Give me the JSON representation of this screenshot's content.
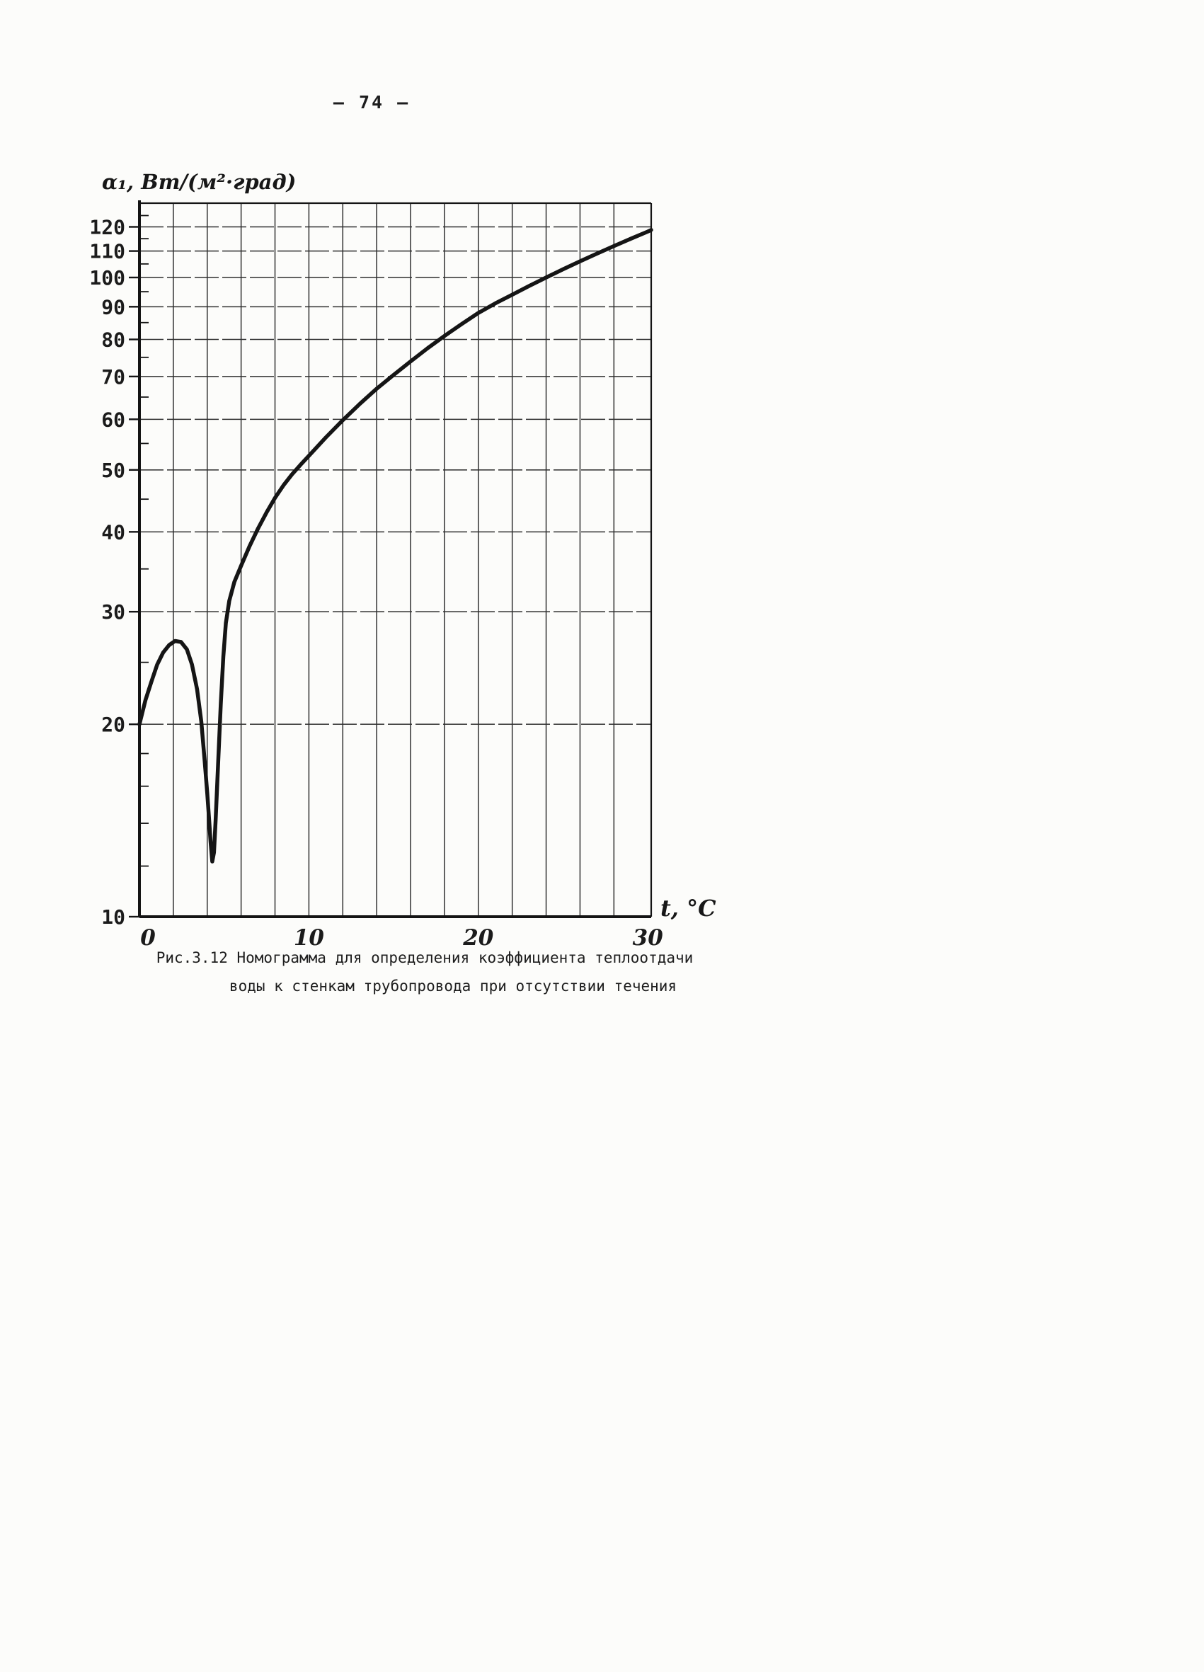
{
  "page": {
    "number": "– 74 –"
  },
  "caption": {
    "line1": "Рис.3.12  Номограмма для определения коэффициента теплоотдачи",
    "line2": "воды к стенкам трубопровода при отсутствии течения"
  },
  "chart_data": {
    "type": "line",
    "title": "Рис.3.12 Номограмма для определения коэффициента теплоотдачи воды к стенкам трубопровода при отсутствии течения",
    "x_axis_title": "t, °С",
    "y_axis_title": "α₁, Вт/(м²·град)",
    "x_scale": "linear",
    "y_scale": "log",
    "xlim": [
      0,
      30.2
    ],
    "ylim": [
      10,
      130
    ],
    "x_ticks": [
      0,
      10,
      20,
      30
    ],
    "y_ticks": [
      10,
      20,
      30,
      40,
      50,
      60,
      70,
      80,
      90,
      100,
      110,
      120
    ],
    "y_minor_ticks": [
      12,
      14,
      16,
      18,
      25,
      35,
      45,
      55,
      65,
      75,
      85,
      95,
      105,
      115,
      125
    ],
    "x_gridline_step": 2,
    "grid": true,
    "legend": "none",
    "series": [
      {
        "name": "α₁(t)",
        "points": [
          [
            0,
            20.0
          ],
          [
            0.35,
            21.8
          ],
          [
            0.7,
            23.3
          ],
          [
            1.05,
            24.8
          ],
          [
            1.4,
            25.9
          ],
          [
            1.75,
            26.6
          ],
          [
            2.1,
            27.0
          ],
          [
            2.45,
            26.9
          ],
          [
            2.8,
            26.2
          ],
          [
            3.1,
            24.8
          ],
          [
            3.4,
            22.7
          ],
          [
            3.65,
            20.2
          ],
          [
            3.85,
            17.5
          ],
          [
            4.0,
            15.6
          ],
          [
            4.1,
            14.3
          ],
          [
            4.2,
            13.1
          ],
          [
            4.3,
            12.2
          ],
          [
            4.4,
            12.6
          ],
          [
            4.5,
            14.2
          ],
          [
            4.65,
            17.5
          ],
          [
            4.8,
            21.5
          ],
          [
            4.95,
            25.5
          ],
          [
            5.1,
            28.8
          ],
          [
            5.3,
            31.2
          ],
          [
            5.6,
            33.4
          ],
          [
            6,
            35.4
          ],
          [
            6.5,
            38.0
          ],
          [
            7,
            40.5
          ],
          [
            7.5,
            42.9
          ],
          [
            8,
            45.2
          ],
          [
            8.5,
            47.3
          ],
          [
            9,
            49.2
          ],
          [
            9.5,
            50.9
          ],
          [
            10,
            52.6
          ],
          [
            11,
            56.2
          ],
          [
            12,
            59.8
          ],
          [
            13,
            63.4
          ],
          [
            14,
            67.0
          ],
          [
            15,
            70.4
          ],
          [
            16,
            73.9
          ],
          [
            17,
            77.5
          ],
          [
            18,
            81.0
          ],
          [
            19,
            84.5
          ],
          [
            20,
            88.0
          ],
          [
            21,
            91.1
          ],
          [
            22,
            94.0
          ],
          [
            23,
            97.0
          ],
          [
            24,
            100.0
          ],
          [
            25,
            103.0
          ],
          [
            26,
            106.0
          ],
          [
            27,
            109.0
          ],
          [
            28,
            112.0
          ],
          [
            29,
            115.0
          ],
          [
            30,
            118.0
          ],
          [
            30.2,
            118.7
          ]
        ]
      }
    ]
  }
}
